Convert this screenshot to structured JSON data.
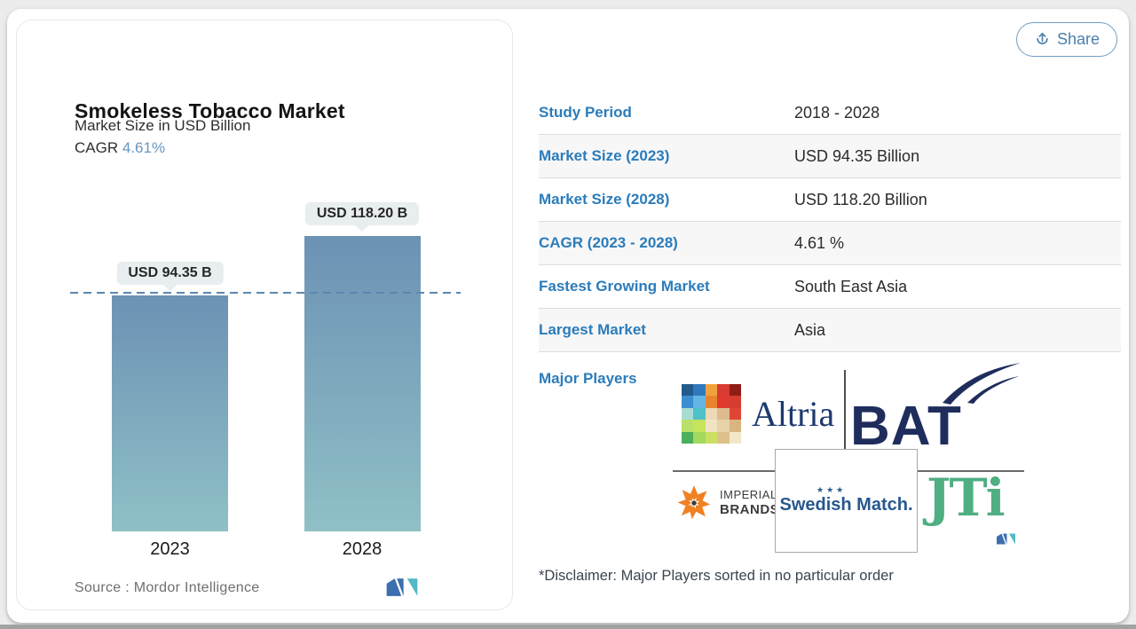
{
  "header": {
    "share_label": "Share"
  },
  "icons": {
    "share": "share-up-arrow-icon",
    "mordor_logo": "mordor-intelligence-mi-mark",
    "imperial_starburst": "imperial-brands-starburst-icon",
    "bat_swoosh": "bat-swoosh-flag-icon"
  },
  "chart": {
    "title": "Smokeless Tobacco Market",
    "subtitle": "Market Size in USD Billion",
    "cagr_label": "CAGR",
    "cagr_value": "4.61%",
    "source": "Source :  Mordor Intelligence"
  },
  "chart_data": {
    "type": "bar",
    "categories": [
      "2023",
      "2028"
    ],
    "values": [
      94.35,
      118.2
    ],
    "value_labels": [
      "USD 94.35 B",
      "USD 118.20 B"
    ],
    "title": "Smokeless Tobacco Market",
    "xlabel": "",
    "ylabel": "Market Size in USD Billion",
    "ylim": [
      0,
      118.2
    ],
    "grid": false,
    "reference_line": 94.35,
    "bar_color_top": "#6c92b4",
    "bar_color_bottom": "#8fc0c6",
    "legend": "none"
  },
  "table": {
    "rows": [
      {
        "label": "Study Period",
        "value": "2018 - 2028"
      },
      {
        "label": "Market Size (2023)",
        "value": "USD 94.35 Billion"
      },
      {
        "label": "Market Size (2028)",
        "value": "USD 118.20 Billion"
      },
      {
        "label": "CAGR (2023 - 2028)",
        "value": "4.61 %"
      },
      {
        "label": "Fastest Growing Market",
        "value": "South East Asia"
      },
      {
        "label": "Largest Market",
        "value": "Asia"
      }
    ]
  },
  "major_players": {
    "label": "Major Players",
    "players": [
      "Altria",
      "BAT",
      "Imperial Brands",
      "Swedish Match",
      "JTI"
    ],
    "disclaimer": "*Disclaimer: Major Players sorted in no particular order"
  },
  "logos": {
    "altria_text": "Altria",
    "bat_text": "BAT",
    "imperial_line1": "IMPERIAL",
    "imperial_line2": "BRANDS",
    "swedish_stars": "★★★",
    "swedish_text": "Swedish Match.",
    "jti_text": "JTi",
    "altria_mosaic": [
      "#235a8c",
      "#3179be",
      "#f0a33c",
      "#d63c31",
      "#8f1d15",
      "#3b8fd0",
      "#64b5e3",
      "#e8852c",
      "#e03a2e",
      "#d63c31",
      "#a8dcd2",
      "#4fc0c8",
      "#ecd9b8",
      "#ddbb90",
      "#e04535",
      "#b8e06a",
      "#c6e35c",
      "#f0e3c2",
      "#e8d2a8",
      "#d9b582",
      "#4caf5e",
      "#a3d95c",
      "#c9e060",
      "#dfc08c",
      "#f2e8c9"
    ]
  },
  "colors": {
    "label_blue": "#2b7cba",
    "accent_blue": "#6795c1",
    "dashed_line": "#5b87b0",
    "bat_navy": "#1e2d5c",
    "altria_navy": "#1d3a70",
    "jti_green": "#4fae82",
    "imperial_orange": "#f08123",
    "swedish_blue": "#27588e"
  }
}
